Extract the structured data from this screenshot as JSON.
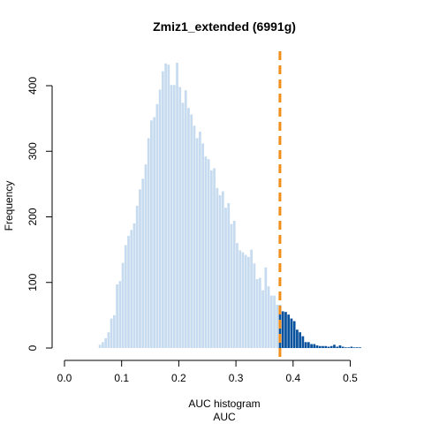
{
  "chart_data": {
    "type": "bar",
    "title": "Zmiz1_extended (6991g)",
    "xlabel": "AUC histogram",
    "xlabel2": "AUC",
    "ylabel": "Frequency",
    "xlim": [
      0,
      0.57
    ],
    "ylim": [
      0,
      440
    ],
    "x_ticks": [
      "0.0",
      "0.1",
      "0.2",
      "0.3",
      "0.4",
      "0.5"
    ],
    "x_tick_values": [
      0,
      0.1,
      0.2,
      0.3,
      0.4,
      0.5
    ],
    "y_ticks": [
      "0",
      "100",
      "200",
      "300",
      "400"
    ],
    "y_tick_values": [
      0,
      100,
      200,
      300,
      400
    ],
    "threshold": 0.377,
    "bin_start": 0.06,
    "bin_width": 0.005,
    "values": [
      5,
      9,
      15,
      24,
      45,
      50,
      97,
      102,
      130,
      157,
      171,
      180,
      190,
      217,
      242,
      258,
      280,
      320,
      347,
      352,
      372,
      394,
      422,
      434,
      432,
      401,
      401,
      435,
      398,
      374,
      393,
      366,
      356,
      339,
      320,
      330,
      312,
      292,
      288,
      271,
      274,
      244,
      233,
      239,
      214,
      221,
      189,
      194,
      160,
      149,
      146,
      142,
      139,
      150,
      129,
      105,
      107,
      88,
      123,
      94,
      80,
      80,
      66,
      65,
      56,
      55,
      51,
      45,
      41,
      28,
      24,
      18,
      9,
      9,
      6,
      6,
      4,
      3,
      3,
      3,
      2,
      3,
      5,
      2,
      4,
      2,
      1,
      1,
      2,
      1,
      1,
      1
    ],
    "colors": {
      "below_threshold": "#c6dbef",
      "above_threshold": "#08519c",
      "threshold_line": "#f28e1c"
    }
  }
}
